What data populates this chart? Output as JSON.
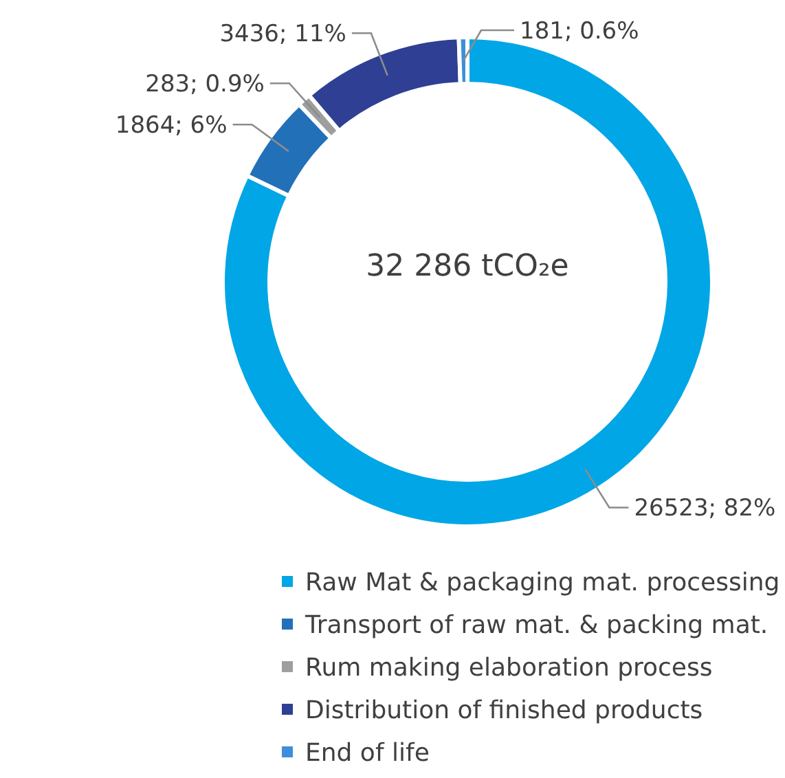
{
  "chart_data": {
    "type": "donut",
    "categories": [
      "Raw Mat  & packaging mat. processing",
      "Transport of raw mat. & packing mat.",
      "Rum making elaboration process",
      "Distribution of finished products",
      "End of life"
    ],
    "values": [
      26523,
      1864,
      283,
      3436,
      181
    ],
    "colors": [
      "#00a6e6",
      "#2270b8",
      "#9e9e9e",
      "#2e3f94",
      "#3c8fd8"
    ],
    "value_labels": [
      "26523; 82%",
      "1864; 6%",
      "283; 0.9%",
      "3436; 11%",
      "181; 0.6%"
    ],
    "annotations": [
      "32 286 tCO₂e"
    ],
    "legend": "bottom"
  }
}
